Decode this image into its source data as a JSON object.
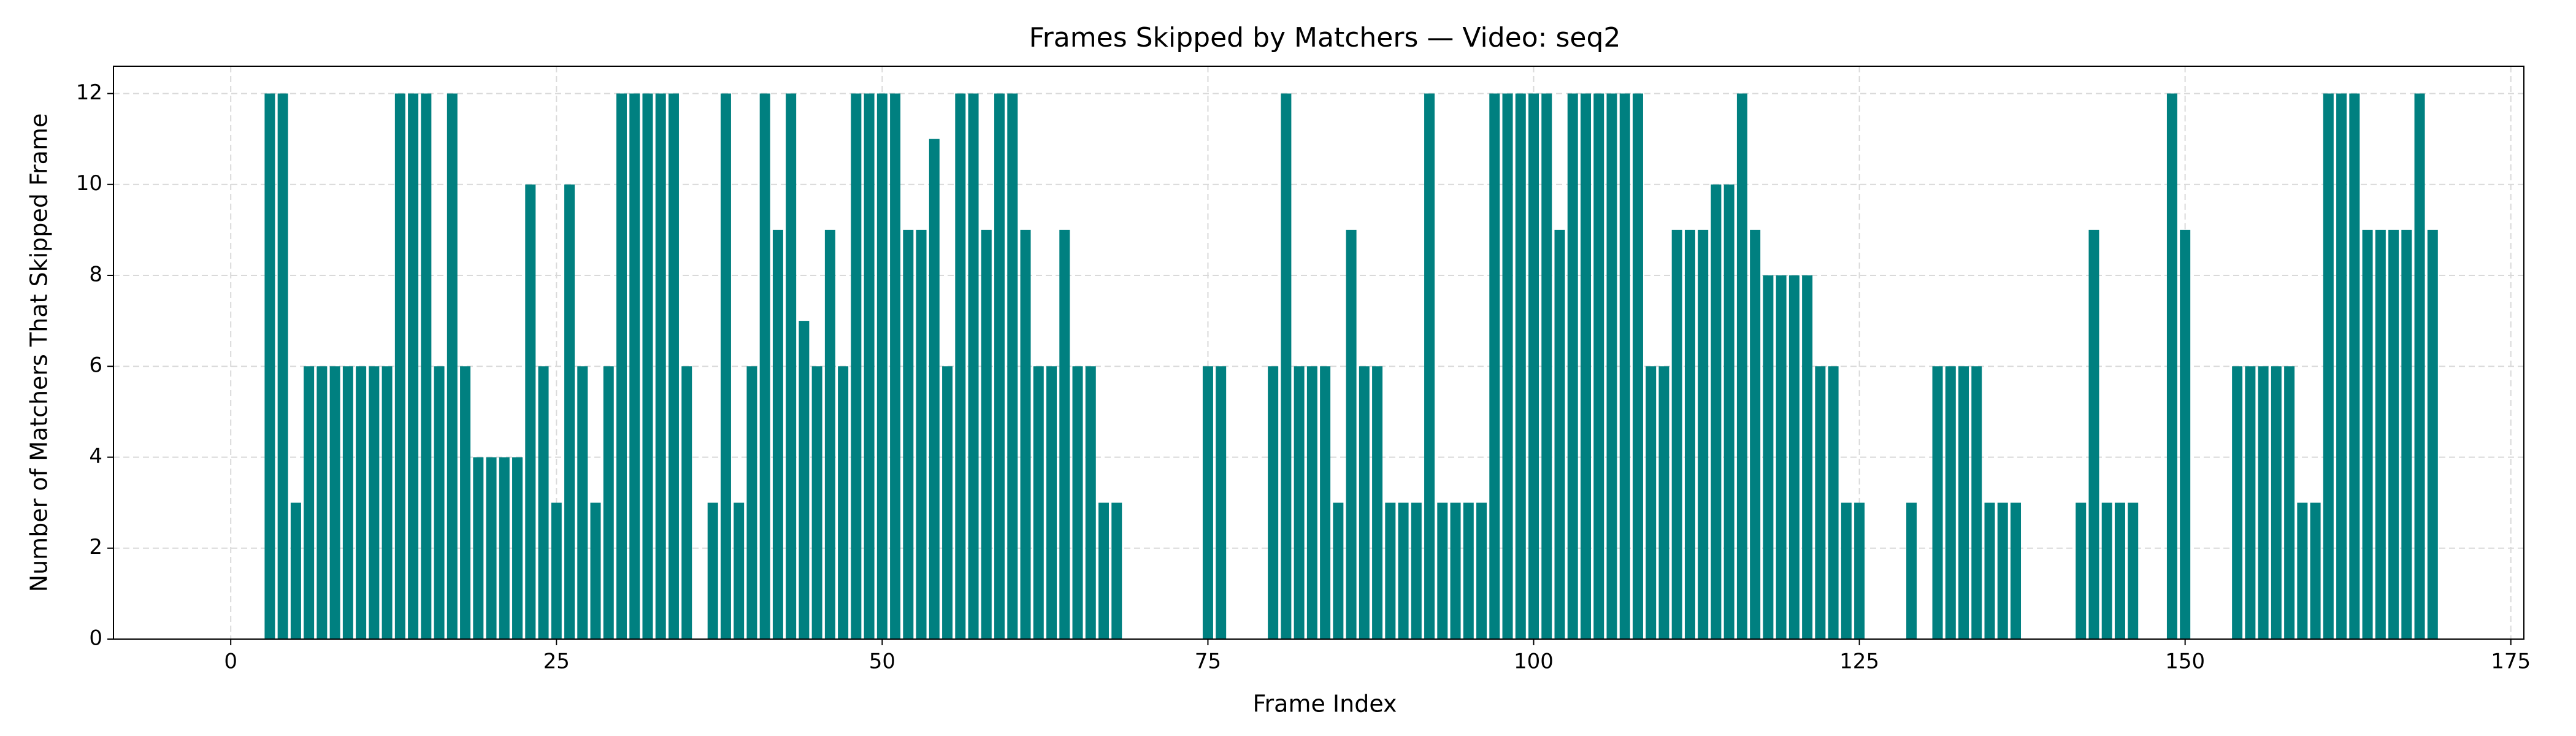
{
  "chart_data": {
    "type": "bar",
    "title": "Frames Skipped by Matchers — Video: seq2",
    "x_label": "Frame Index",
    "y_label": "Number of Matchers That Skipped Frame",
    "color": "#008080",
    "x": [
      3,
      4,
      5,
      6,
      7,
      8,
      9,
      10,
      11,
      12,
      13,
      14,
      15,
      16,
      17,
      18,
      19,
      20,
      21,
      22,
      23,
      24,
      25,
      26,
      27,
      28,
      29,
      30,
      31,
      32,
      33,
      34,
      35,
      37,
      38,
      39,
      40,
      41,
      42,
      43,
      44,
      45,
      46,
      47,
      48,
      49,
      50,
      51,
      52,
      53,
      54,
      55,
      56,
      57,
      58,
      59,
      60,
      61,
      62,
      63,
      64,
      65,
      66,
      67,
      68,
      75,
      76,
      80,
      81,
      82,
      83,
      84,
      85,
      86,
      87,
      88,
      89,
      90,
      91,
      92,
      93,
      94,
      95,
      96,
      97,
      98,
      99,
      100,
      101,
      102,
      103,
      104,
      105,
      106,
      107,
      108,
      109,
      110,
      111,
      112,
      113,
      114,
      115,
      116,
      117,
      118,
      119,
      120,
      121,
      122,
      123,
      124,
      125,
      129,
      131,
      132,
      133,
      134,
      135,
      136,
      137,
      142,
      143,
      144,
      145,
      146,
      149,
      150,
      154,
      155,
      156,
      157,
      158,
      159,
      160,
      161,
      162,
      163,
      164,
      165,
      166,
      167,
      168,
      169
    ],
    "values": [
      12,
      12,
      3,
      6,
      6,
      6,
      6,
      6,
      6,
      6,
      12,
      12,
      12,
      6,
      12,
      6,
      4,
      4,
      4,
      4,
      10,
      6,
      3,
      10,
      6,
      3,
      6,
      12,
      12,
      12,
      12,
      12,
      6,
      3,
      12,
      3,
      6,
      12,
      9,
      12,
      7,
      6,
      9,
      6,
      12,
      12,
      12,
      12,
      9,
      9,
      11,
      6,
      12,
      12,
      9,
      12,
      12,
      9,
      6,
      6,
      9,
      6,
      6,
      3,
      3,
      6,
      6,
      6,
      12,
      6,
      6,
      6,
      3,
      9,
      6,
      6,
      3,
      3,
      3,
      12,
      3,
      3,
      3,
      3,
      12,
      12,
      12,
      12,
      12,
      9,
      12,
      12,
      12,
      12,
      12,
      12,
      6,
      6,
      9,
      9,
      9,
      10,
      10,
      12,
      9,
      8,
      8,
      8,
      8,
      6,
      6,
      3,
      3,
      3,
      6,
      6,
      6,
      6,
      3,
      3,
      3,
      3,
      9,
      3,
      3,
      3,
      12,
      9,
      6,
      6,
      6,
      6,
      6,
      3,
      3,
      12,
      12,
      12,
      9,
      9,
      9,
      9,
      12,
      9
    ],
    "bar_width": 0.8,
    "xlim": [
      -9,
      176
    ],
    "xticks": [
      0,
      25,
      50,
      75,
      100,
      125,
      150,
      175
    ],
    "ylim": [
      0,
      12.6
    ],
    "yticks": [
      0,
      2,
      4,
      6,
      8,
      10,
      12
    ],
    "grid": true
  }
}
